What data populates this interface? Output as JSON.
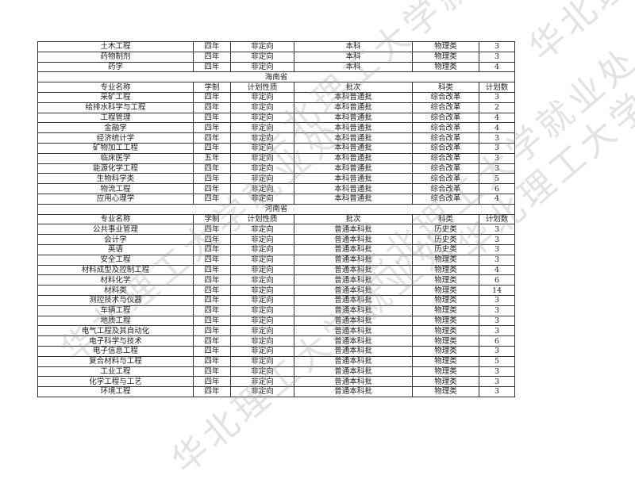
{
  "watermark": "华北理工大学就业处",
  "columns": [
    "专业名称",
    "学制",
    "计划性质",
    "批次",
    "科类",
    "计划数"
  ],
  "top_rows": [
    [
      "土木工程",
      "四年",
      "非定向",
      "本科",
      "物理类",
      "3"
    ],
    [
      "药物制剂",
      "四年",
      "非定向",
      "本科",
      "物理类",
      "3"
    ],
    [
      "药学",
      "四年",
      "非定向",
      "本科",
      "物理类",
      "4"
    ]
  ],
  "sections": [
    {
      "province": "海南省",
      "rows": [
        [
          "采矿工程",
          "四年",
          "非定向",
          "本科普通批",
          "综合改革",
          "3"
        ],
        [
          "给排水科学与工程",
          "四年",
          "非定向",
          "本科普通批",
          "综合改革",
          "2"
        ],
        [
          "工程管理",
          "四年",
          "非定向",
          "本科普通批",
          "综合改革",
          "4"
        ],
        [
          "金融学",
          "四年",
          "非定向",
          "本科普通批",
          "综合改革",
          "4"
        ],
        [
          "经济统计学",
          "四年",
          "非定向",
          "本科普通批",
          "综合改革",
          "3"
        ],
        [
          "矿物加工工程",
          "四年",
          "非定向",
          "本科普通批",
          "综合改革",
          "3"
        ],
        [
          "临床医学",
          "五年",
          "非定向",
          "本科普通批",
          "综合改革",
          "3"
        ],
        [
          "能源化学工程",
          "四年",
          "非定向",
          "本科普通批",
          "综合改革",
          "3"
        ],
        [
          "生物科学类",
          "四年",
          "非定向",
          "本科普通批",
          "综合改革",
          "5"
        ],
        [
          "物流工程",
          "四年",
          "非定向",
          "本科普通批",
          "综合改革",
          "6"
        ],
        [
          "应用心理学",
          "四年",
          "非定向",
          "本科普通批",
          "综合改革",
          "4"
        ]
      ]
    },
    {
      "province": "河南省",
      "rows": [
        [
          "公共事业管理",
          "四年",
          "非定向",
          "普通本科批",
          "历史类",
          "3"
        ],
        [
          "会计学",
          "四年",
          "非定向",
          "普通本科批",
          "历史类",
          "3"
        ],
        [
          "英语",
          "四年",
          "非定向",
          "普通本科批",
          "历史类",
          "3"
        ],
        [
          "安全工程",
          "四年",
          "非定向",
          "普通本科批",
          "物理类",
          "3"
        ],
        [
          "材料成型及控制工程",
          "四年",
          "非定向",
          "普通本科批",
          "物理类",
          "4"
        ],
        [
          "材料化学",
          "四年",
          "非定向",
          "普通本科批",
          "物理类",
          "6"
        ],
        [
          "材料类",
          "四年",
          "非定向",
          "普通本科批",
          "物理类",
          "14"
        ],
        [
          "测控技术与仪器",
          "四年",
          "非定向",
          "普通本科批",
          "物理类",
          "3"
        ],
        [
          "车辆工程",
          "四年",
          "非定向",
          "普通本科批",
          "物理类",
          "3"
        ],
        [
          "地质工程",
          "四年",
          "非定向",
          "普通本科批",
          "物理类",
          "3"
        ],
        [
          "电气工程及其自动化",
          "四年",
          "非定向",
          "普通本科批",
          "物理类",
          "3"
        ],
        [
          "电子科学与技术",
          "四年",
          "非定向",
          "普通本科批",
          "物理类",
          "6"
        ],
        [
          "电子信息工程",
          "四年",
          "非定向",
          "普通本科批",
          "物理类",
          "3"
        ],
        [
          "复合材料与工程",
          "四年",
          "非定向",
          "普通本科批",
          "物理类",
          "5"
        ],
        [
          "工业工程",
          "四年",
          "非定向",
          "普通本科批",
          "物理类",
          "3"
        ],
        [
          "化学工程与工艺",
          "四年",
          "非定向",
          "普通本科批",
          "物理类",
          "3"
        ],
        [
          "环境工程",
          "四年",
          "非定向",
          "普通本科批",
          "物理类",
          "3"
        ]
      ]
    }
  ]
}
